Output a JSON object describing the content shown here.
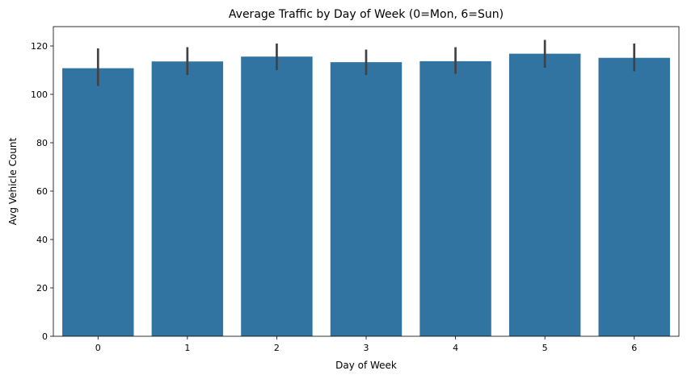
{
  "chart_data": {
    "type": "bar",
    "title": "Average Traffic by Day of Week (0=Mon, 6=Sun)",
    "xlabel": "Day of Week",
    "ylabel": "Avg Vehicle Count",
    "categories": [
      "0",
      "1",
      "2",
      "3",
      "4",
      "5",
      "6"
    ],
    "values": [
      110.8,
      113.6,
      115.6,
      113.3,
      113.7,
      116.8,
      115.1
    ],
    "error_low": [
      103.5,
      108.0,
      110.0,
      108.0,
      108.5,
      111.0,
      109.5
    ],
    "error_high": [
      119.0,
      119.5,
      121.0,
      118.5,
      119.5,
      122.5,
      121.0
    ],
    "ylim": [
      0,
      128
    ],
    "yticks": [
      0,
      20,
      40,
      60,
      80,
      100,
      120
    ],
    "bar_color": "#3274a1",
    "error_color": "#424242",
    "grid": false,
    "legend": "none"
  }
}
